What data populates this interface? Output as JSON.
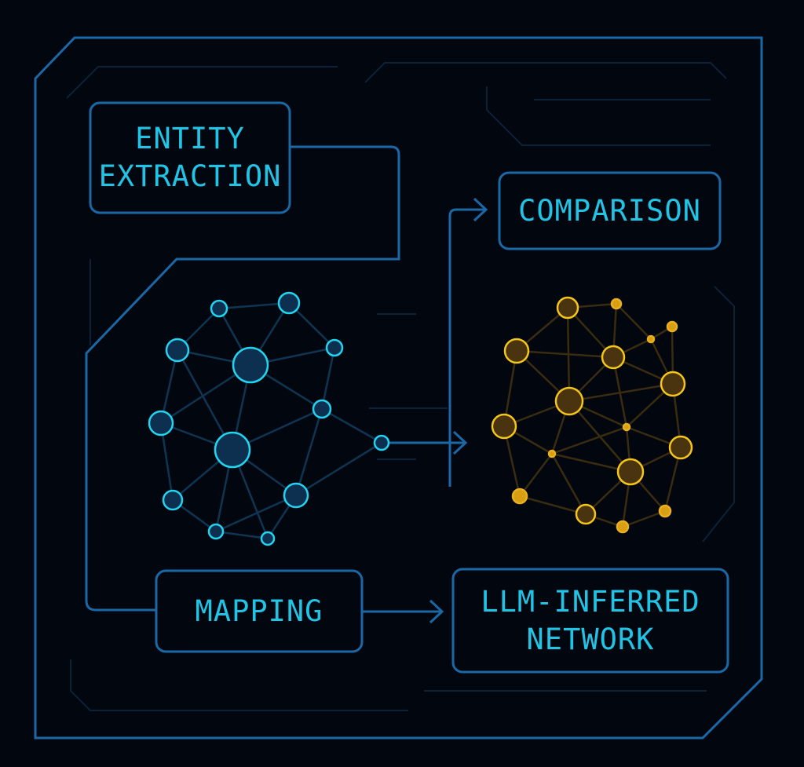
{
  "colors": {
    "background": "#02060f",
    "frame": "#1b68a6",
    "text": "#22c4e6",
    "blue_node": "#0e3050",
    "blue_node_ring": "#22d4f0",
    "gold_node_ring": "#f5c518",
    "gold_node_fill": "#4a3410"
  },
  "boxes": {
    "entity_extraction": {
      "line1": "ENTITY",
      "line2": "EXTRACTION"
    },
    "comparison": {
      "line1": "COMPARISON"
    },
    "mapping": {
      "line1": "MAPPING"
    },
    "llm_inferred_network": {
      "line1": "LLM-INFERRED",
      "line2": "NETWORK"
    }
  }
}
